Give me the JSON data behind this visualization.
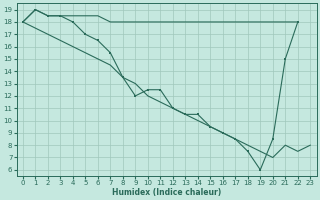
{
  "xlabel": "Humidex (Indice chaleur)",
  "xlim": [
    -0.5,
    23.5
  ],
  "ylim": [
    5.5,
    19.5
  ],
  "yticks": [
    6,
    7,
    8,
    9,
    10,
    11,
    12,
    13,
    14,
    15,
    16,
    17,
    18,
    19
  ],
  "xticks": [
    0,
    1,
    2,
    3,
    4,
    5,
    6,
    7,
    8,
    9,
    10,
    11,
    12,
    13,
    14,
    15,
    16,
    17,
    18,
    19,
    20,
    21,
    22,
    23
  ],
  "bg_color": "#c5e8df",
  "grid_color": "#a0c8bc",
  "line_color": "#2a6b5a",
  "line1_x": [
    0,
    1,
    2,
    3,
    4,
    5,
    6,
    7,
    8,
    9,
    10,
    11,
    12,
    13,
    14,
    15,
    16,
    17,
    18,
    20,
    21,
    22
  ],
  "line1_y": [
    18.0,
    19.0,
    18.5,
    18.5,
    18.5,
    18.5,
    18.5,
    18.0,
    18.0,
    18.0,
    18.0,
    18.0,
    18.0,
    18.0,
    18.0,
    18.0,
    18.0,
    18.0,
    18.0,
    18.0,
    18.0,
    18.0
  ],
  "line2_x": [
    0,
    1,
    2,
    3,
    4,
    5,
    6,
    7,
    8,
    9,
    10,
    11,
    12,
    13,
    14,
    15,
    16,
    17,
    18,
    19,
    20,
    21,
    22
  ],
  "line2_y": [
    18.0,
    19.0,
    18.5,
    18.5,
    18.0,
    17.0,
    16.5,
    15.5,
    13.5,
    12.0,
    12.5,
    12.5,
    11.0,
    10.5,
    10.5,
    9.5,
    9.0,
    8.5,
    7.5,
    6.0,
    8.5,
    15.0,
    18.0
  ],
  "line3_x": [
    0,
    1,
    2,
    3,
    4,
    5,
    6,
    7,
    8,
    9,
    10,
    11,
    12,
    13,
    14,
    15,
    16,
    17,
    18,
    19,
    20,
    21,
    22,
    23
  ],
  "line3_y": [
    18.0,
    17.5,
    17.0,
    16.5,
    16.0,
    15.5,
    15.0,
    14.5,
    13.5,
    13.0,
    12.0,
    11.5,
    11.0,
    10.5,
    10.0,
    9.5,
    9.0,
    8.5,
    8.0,
    7.5,
    7.0,
    8.0,
    7.5,
    8.0
  ]
}
